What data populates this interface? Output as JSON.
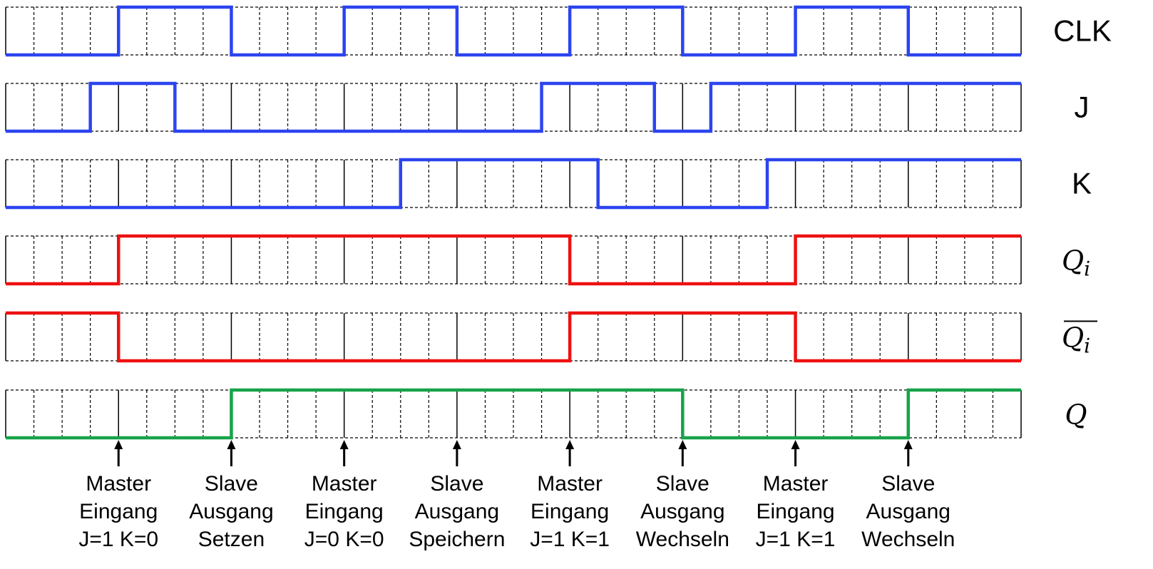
{
  "timing": {
    "half_periods": 4,
    "rows": [
      {
        "id": "clk",
        "label": "CLK",
        "italic": false,
        "overline": false,
        "sub": "",
        "color": "#2b44f0",
        "start": 0,
        "transitions": [
          4,
          8,
          12,
          16,
          20,
          24,
          28,
          32
        ]
      },
      {
        "id": "j",
        "label": "J",
        "italic": false,
        "overline": false,
        "sub": "",
        "color": "#2b44f0",
        "start": 0,
        "transitions": [
          3,
          6,
          19,
          23,
          25
        ]
      },
      {
        "id": "k",
        "label": "K",
        "italic": false,
        "overline": false,
        "sub": "",
        "color": "#2b44f0",
        "start": 0,
        "transitions": [
          14,
          21,
          27
        ]
      },
      {
        "id": "qi",
        "label": "Q",
        "italic": true,
        "overline": false,
        "sub": "i",
        "color": "#ee1111",
        "start": 0,
        "transitions": [
          4,
          20,
          28
        ]
      },
      {
        "id": "qi-bar",
        "label": "Q",
        "italic": true,
        "overline": true,
        "sub": "i",
        "color": "#ee1111",
        "start": 1,
        "transitions": [
          4,
          20,
          28
        ]
      },
      {
        "id": "q",
        "label": "Q",
        "italic": true,
        "overline": false,
        "sub": "",
        "color": "#17a34a",
        "start": 0,
        "transitions": [
          8,
          24,
          32
        ]
      }
    ],
    "cells": 36
  },
  "annotations": [
    {
      "at": 4,
      "lines": [
        "Master",
        "Eingang",
        "J=1 K=0"
      ]
    },
    {
      "at": 8,
      "lines": [
        "Slave",
        "Ausgang",
        "Setzen"
      ]
    },
    {
      "at": 12,
      "lines": [
        "Master",
        "Eingang",
        "J=0 K=0"
      ]
    },
    {
      "at": 16,
      "lines": [
        "Slave",
        "Ausgang",
        "Speichern"
      ]
    },
    {
      "at": 20,
      "lines": [
        "Master",
        "Eingang",
        "J=1 K=1"
      ]
    },
    {
      "at": 24,
      "lines": [
        "Slave",
        "Ausgang",
        "Wechseln"
      ]
    },
    {
      "at": 28,
      "lines": [
        "Master",
        "Eingang",
        "J=1 K=1"
      ]
    },
    {
      "at": 32,
      "lines": [
        "Slave",
        "Ausgang",
        "Wechseln"
      ]
    }
  ]
}
